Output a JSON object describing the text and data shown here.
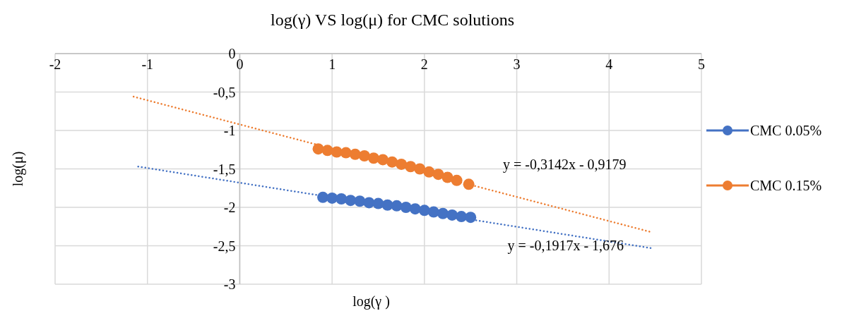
{
  "chart_data": {
    "type": "line",
    "title": "log(γ) VS log(μ) for CMC solutions",
    "xlabel": "log(γ )",
    "ylabel": "log(μ)",
    "xlim": [
      -2,
      5
    ],
    "xticks": [
      -2,
      -1,
      0,
      1,
      2,
      3,
      4,
      5
    ],
    "ylim": [
      -3,
      0
    ],
    "yticks": [
      0,
      {
        "value": -0.5,
        "label": "-0,5"
      },
      -1,
      {
        "value": -1.5,
        "label": "-1,5"
      },
      -2,
      {
        "value": -2.5,
        "label": "-2,5"
      },
      -3
    ],
    "grid": true,
    "legend": "right",
    "marker": "circle",
    "series": [
      {
        "color": "#4472c4",
        "marker": "none",
        "line_style": "dotted",
        "x": [
          -1.1,
          4.45
        ],
        "values": [
          -1.47,
          -2.53
        ]
      },
      {
        "color": "#ed7d31",
        "marker": "none",
        "line_style": "dotted",
        "x": [
          -1.15,
          4.45
        ],
        "values": [
          -0.56,
          -2.32
        ]
      },
      {
        "name": "CMC 0.05%",
        "type": "scatter",
        "color": "#4472c4",
        "x": [
          0.9,
          1.0,
          1.1,
          1.2,
          1.3,
          1.4,
          1.5,
          1.6,
          1.7,
          1.8,
          1.9,
          2.0,
          2.1,
          2.2,
          2.3,
          2.4,
          2.5
        ],
        "values": [
          -1.87,
          -1.88,
          -1.89,
          -1.91,
          -1.92,
          -1.94,
          -1.95,
          -1.97,
          -1.98,
          -2.0,
          -2.02,
          -2.04,
          -2.06,
          -2.08,
          -2.1,
          -2.12,
          -2.13
        ]
      },
      {
        "name": "CMC 0.15%",
        "type": "scatter",
        "color": "#ed7d31",
        "x": [
          0.85,
          0.95,
          1.05,
          1.15,
          1.25,
          1.35,
          1.45,
          1.55,
          1.65,
          1.75,
          1.85,
          1.95,
          2.05,
          2.15,
          2.25,
          2.35,
          2.48
        ],
        "values": [
          -1.24,
          -1.26,
          -1.28,
          -1.29,
          -1.31,
          -1.33,
          -1.36,
          -1.38,
          -1.41,
          -1.44,
          -1.47,
          -1.5,
          -1.54,
          -1.57,
          -1.61,
          -1.65,
          -1.7
        ]
      }
    ],
    "annotations": [
      "y = -0,3142x - 0,9179",
      "y = -0,1917x - 1,676"
    ]
  }
}
